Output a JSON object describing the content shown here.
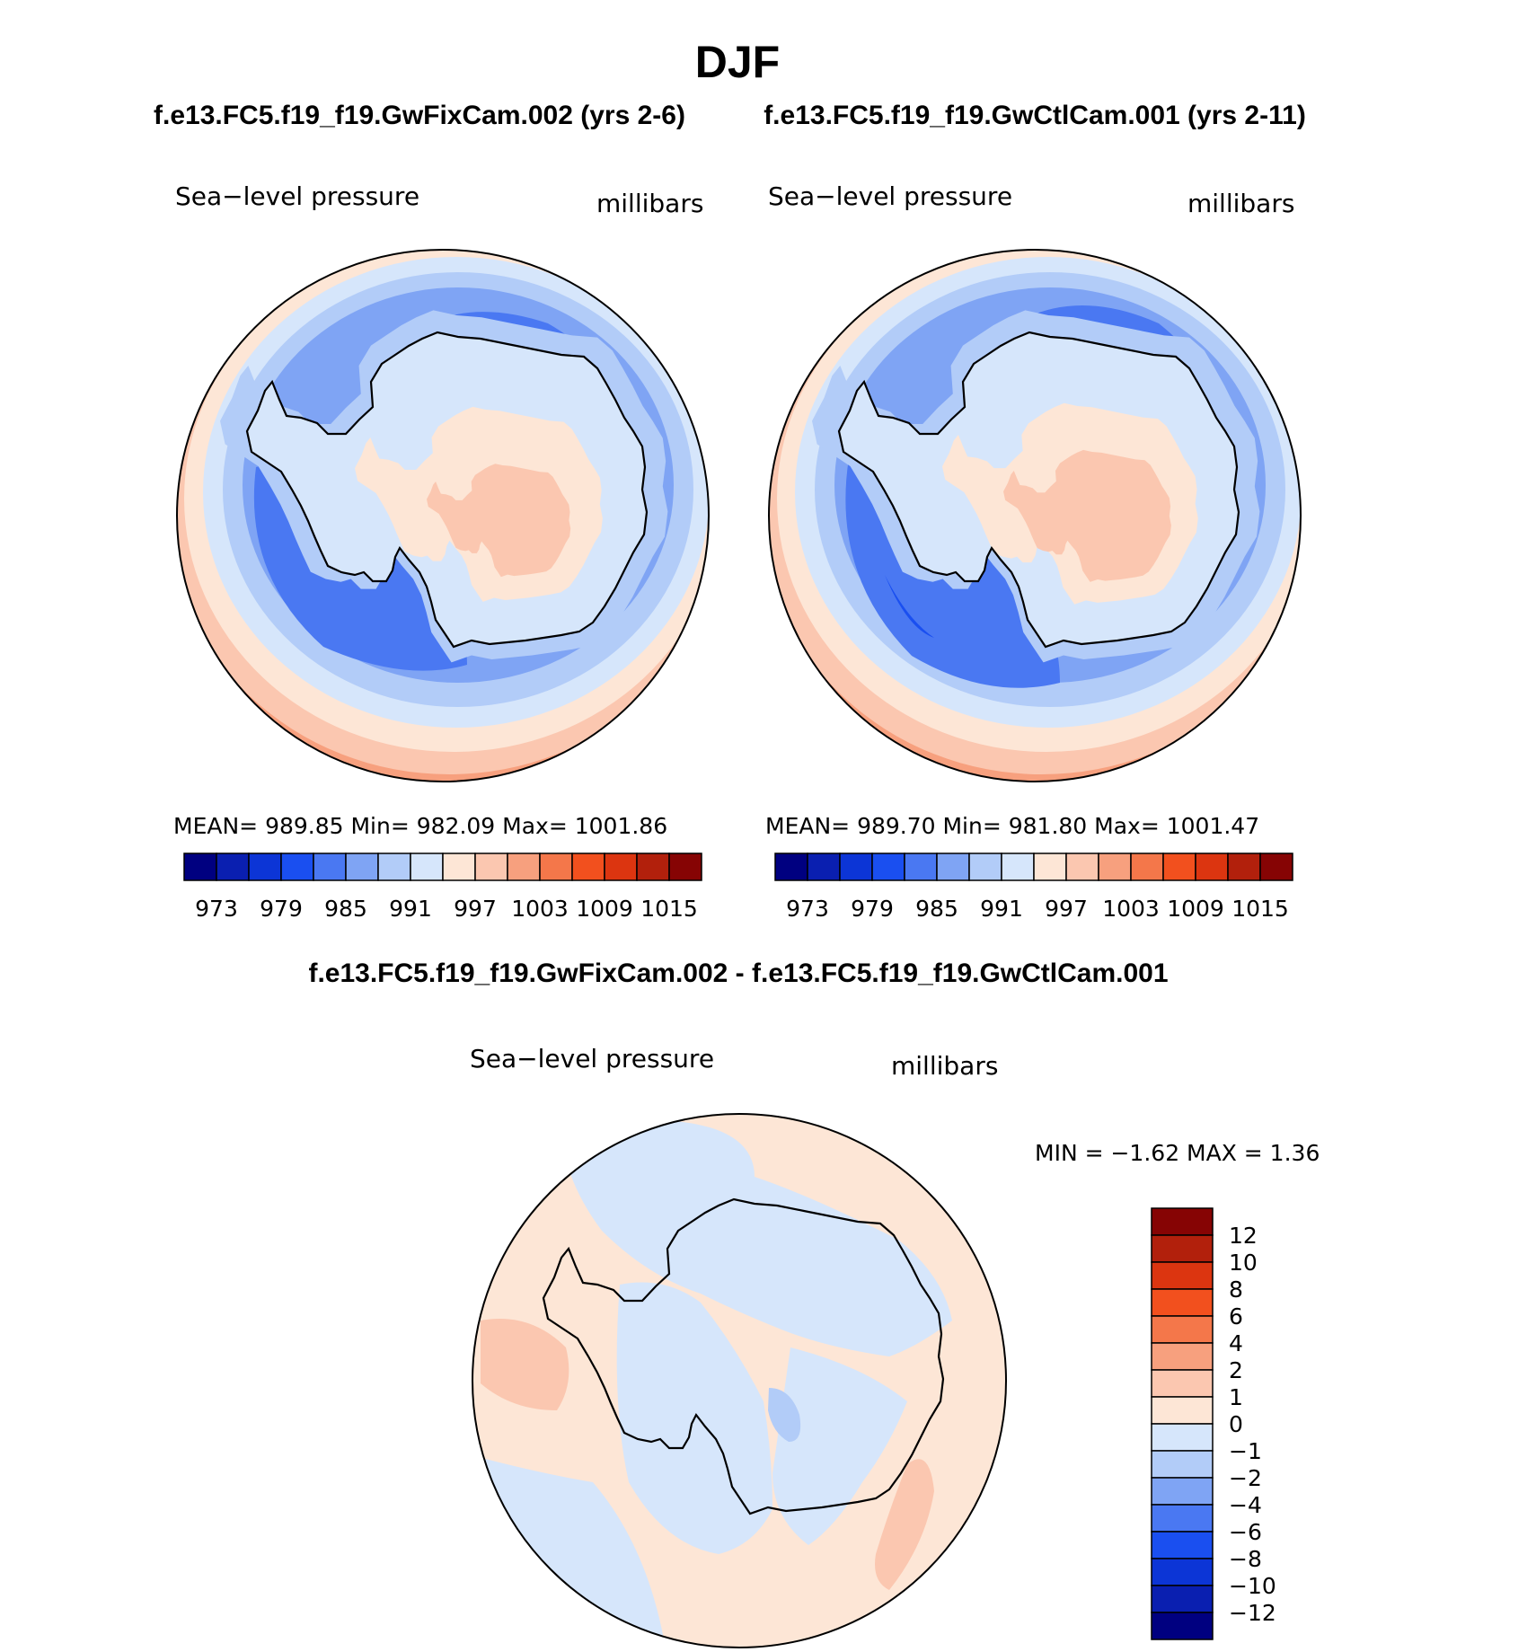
{
  "title": "DJF",
  "panels": [
    {
      "case_title": "f.e13.FC5.f19_f19.GwFixCam.002 (yrs 2-6)",
      "variable": "Sea−level pressure",
      "units": "millibars",
      "stats_label": "MEAN=  989.85   Min=  982.09   Max=  1001.86",
      "mean": 989.85,
      "min": 982.09,
      "max": 1001.86
    },
    {
      "case_title": "f.e13.FC5.f19_f19.GwCtlCam.001 (yrs 2-11)",
      "variable": "Sea−level pressure",
      "units": "millibars",
      "stats_label": "MEAN=  989.70   Min=  981.80   Max=  1001.47",
      "mean": 989.7,
      "min": 981.8,
      "max": 1001.47
    }
  ],
  "diff_panel": {
    "title": "f.e13.FC5.f19_f19.GwFixCam.002 - f.e13.FC5.f19_f19.GwCtlCam.001",
    "variable": "Sea−level pressure",
    "units": "millibars",
    "minmax_label": "MIN =   −1.62  MAX =     1.36",
    "min": -1.62,
    "max": 1.36
  },
  "abs_colorbar": {
    "colors": [
      "#000080",
      "#0a1fb0",
      "#0c35d6",
      "#1a4ff0",
      "#4a78f2",
      "#7fa4f4",
      "#b2ccf8",
      "#d6e6fb",
      "#fde6d6",
      "#fbc7b0",
      "#f7a07e",
      "#f4774a",
      "#f2501e",
      "#dc3510",
      "#b2200c",
      "#860404"
    ],
    "labels": [
      "973",
      "979",
      "985",
      "991",
      "997",
      "1003",
      "1009",
      "1015"
    ]
  },
  "diff_colorbar": {
    "colors": [
      "#000080",
      "#0a1fb0",
      "#0c35d6",
      "#1a4ff0",
      "#4a78f2",
      "#7fa4f4",
      "#b2ccf8",
      "#d6e6fb",
      "#fde6d6",
      "#fbc7b0",
      "#f7a07e",
      "#f4774a",
      "#f2501e",
      "#dc3510",
      "#b2200c",
      "#860404"
    ],
    "labels": [
      "12",
      "10",
      "8",
      "6",
      "4",
      "2",
      "1",
      "0",
      "−1",
      "−2",
      "−4",
      "−6",
      "−8",
      "−10",
      "−12"
    ]
  }
}
